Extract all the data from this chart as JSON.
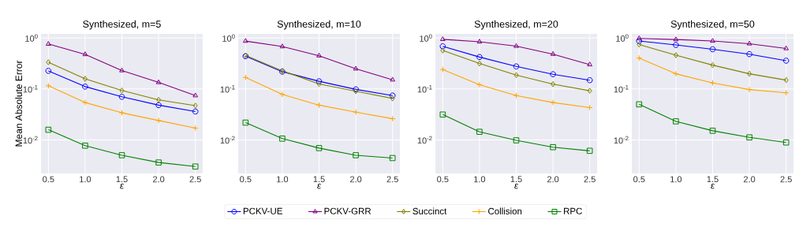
{
  "chart_data": [
    {
      "type": "line",
      "title": "Synthesized, m=5",
      "xlabel": "ε",
      "ylabel": "Mean Absolute Error",
      "x": [
        0.5,
        1.0,
        1.5,
        2.0,
        2.5
      ],
      "xlim": [
        0.4,
        2.6
      ],
      "ylim": [
        0.0022,
        1.2
      ],
      "log": true,
      "grid": true,
      "legend": "bottom",
      "xticks": [
        {
          "value": 0.5,
          "label": "0.5"
        },
        {
          "value": 1,
          "label": "1.0"
        },
        {
          "value": 1.5,
          "label": "1.5"
        },
        {
          "value": 2,
          "label": "2.0"
        },
        {
          "value": 2.5,
          "label": "2.5"
        }
      ],
      "yticks": [
        {
          "value": 0.01,
          "label": "10$^{-2}$"
        },
        {
          "value": 0.1,
          "label": "10$^{-1}$"
        },
        {
          "value": 1,
          "label": "10$^{0}$"
        }
      ],
      "series": [
        {
          "name": "PCKV-UE",
          "color": "#0000ff",
          "marker": "circle",
          "values": [
            0.226,
            0.111,
            0.07,
            0.048,
            0.036
          ]
        },
        {
          "name": "PCKV-GRR",
          "color": "#800080",
          "marker": "triangle",
          "values": [
            0.76,
            0.475,
            0.229,
            0.134,
            0.074
          ]
        },
        {
          "name": "Succinct",
          "color": "#808000",
          "marker": "diamond",
          "values": [
            0.333,
            0.158,
            0.093,
            0.061,
            0.047
          ]
        },
        {
          "name": "Collision",
          "color": "#ffa500",
          "marker": "cross",
          "values": [
            0.115,
            0.054,
            0.034,
            0.024,
            0.017
          ]
        },
        {
          "name": "RPC",
          "color": "#008000",
          "marker": "square",
          "values": [
            0.0158,
            0.0077,
            0.005,
            0.0036,
            0.003
          ]
        }
      ]
    },
    {
      "type": "line",
      "title": "Synthesized, m=10",
      "xlabel": "ε",
      "x": [
        0.5,
        1.0,
        1.5,
        2.0,
        2.5
      ],
      "xlim": [
        0.4,
        2.6
      ],
      "ylim": [
        0.0022,
        1.2
      ],
      "log": true,
      "grid": true,
      "xticks": [
        {
          "value": 0.5,
          "label": "0.5"
        },
        {
          "value": 1,
          "label": "1.0"
        },
        {
          "value": 1.5,
          "label": "1.5"
        },
        {
          "value": 2,
          "label": "2.0"
        },
        {
          "value": 2.5,
          "label": "2.5"
        }
      ],
      "yticks": [
        {
          "value": 0.01,
          "label": "10$^{-2}$"
        },
        {
          "value": 0.1,
          "label": "10$^{-1}$"
        },
        {
          "value": 1,
          "label": "10$^{0}$"
        }
      ],
      "series": [
        {
          "color": "#0000ff",
          "marker": "circle",
          "values": [
            0.438,
            0.218,
            0.141,
            0.098,
            0.074
          ]
        },
        {
          "color": "#800080",
          "marker": "triangle",
          "values": [
            0.868,
            0.677,
            0.448,
            0.248,
            0.151
          ]
        },
        {
          "color": "#808000",
          "marker": "diamond",
          "values": [
            0.453,
            0.226,
            0.125,
            0.09,
            0.065
          ]
        },
        {
          "color": "#ffa500",
          "marker": "cross",
          "values": [
            0.168,
            0.078,
            0.048,
            0.035,
            0.026
          ]
        },
        {
          "color": "#008000",
          "marker": "square",
          "values": [
            0.0218,
            0.0106,
            0.0069,
            0.005,
            0.0044
          ]
        }
      ]
    },
    {
      "type": "line",
      "title": "Synthesized, m=20",
      "xlabel": "ε",
      "x": [
        0.5,
        1.0,
        1.5,
        2.0,
        2.5
      ],
      "xlim": [
        0.4,
        2.6
      ],
      "ylim": [
        0.0022,
        1.2
      ],
      "log": true,
      "grid": true,
      "xticks": [
        {
          "value": 0.5,
          "label": "0.5"
        },
        {
          "value": 1,
          "label": "1.0"
        },
        {
          "value": 1.5,
          "label": "1.5"
        },
        {
          "value": 2,
          "label": "2.0"
        },
        {
          "value": 2.5,
          "label": "2.5"
        }
      ],
      "yticks": [
        {
          "value": 0.01,
          "label": "10$^{-2}$"
        },
        {
          "value": 0.1,
          "label": "10$^{-1}$"
        },
        {
          "value": 1,
          "label": "10$^{0}$"
        }
      ],
      "series": [
        {
          "color": "#0000ff",
          "marker": "circle",
          "values": [
            0.685,
            0.422,
            0.276,
            0.194,
            0.148
          ]
        },
        {
          "color": "#800080",
          "marker": "triangle",
          "values": [
            0.94,
            0.84,
            0.69,
            0.481,
            0.3
          ]
        },
        {
          "color": "#808000",
          "marker": "diamond",
          "values": [
            0.567,
            0.315,
            0.187,
            0.124,
            0.092
          ]
        },
        {
          "color": "#ffa500",
          "marker": "cross",
          "values": [
            0.24,
            0.121,
            0.074,
            0.054,
            0.043
          ]
        },
        {
          "color": "#008000",
          "marker": "square",
          "values": [
            0.0314,
            0.0144,
            0.0098,
            0.0072,
            0.0061
          ]
        }
      ]
    },
    {
      "type": "line",
      "title": "Synthesized, m=50",
      "xlabel": "ε",
      "x": [
        0.5,
        1.0,
        1.5,
        2.0,
        2.5
      ],
      "xlim": [
        0.4,
        2.6
      ],
      "ylim": [
        0.0022,
        1.2
      ],
      "log": true,
      "grid": true,
      "xticks": [
        {
          "value": 0.5,
          "label": "0.5"
        },
        {
          "value": 1,
          "label": "1.0"
        },
        {
          "value": 1.5,
          "label": "1.5"
        },
        {
          "value": 2,
          "label": "2.0"
        },
        {
          "value": 2.5,
          "label": "2.5"
        }
      ],
      "yticks": [
        {
          "value": 0.01,
          "label": "10$^{-2}$"
        },
        {
          "value": 0.1,
          "label": "10$^{-1}$"
        },
        {
          "value": 1,
          "label": "10$^{0}$"
        }
      ],
      "series": [
        {
          "color": "#0000ff",
          "marker": "circle",
          "values": [
            0.87,
            0.727,
            0.6,
            0.481,
            0.358
          ]
        },
        {
          "color": "#800080",
          "marker": "triangle",
          "values": [
            0.98,
            0.93,
            0.87,
            0.77,
            0.62
          ]
        },
        {
          "color": "#808000",
          "marker": "diamond",
          "values": [
            0.744,
            0.459,
            0.293,
            0.198,
            0.149
          ]
        },
        {
          "color": "#ffa500",
          "marker": "cross",
          "values": [
            0.403,
            0.198,
            0.131,
            0.097,
            0.084
          ]
        },
        {
          "color": "#008000",
          "marker": "square",
          "values": [
            0.0498,
            0.0231,
            0.0151,
            0.0112,
            0.0089
          ]
        }
      ]
    }
  ]
}
